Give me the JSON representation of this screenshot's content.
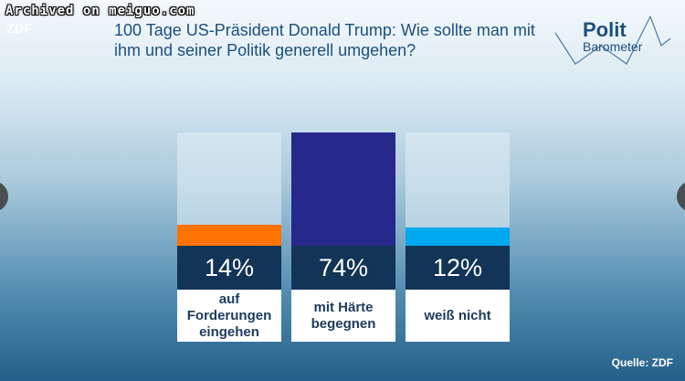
{
  "watermark": "Archived on meiguo.com",
  "broadcaster": "ZDF",
  "logo": {
    "line1": "Polit",
    "line2": "Barometer"
  },
  "chart_data": {
    "type": "bar",
    "title": "100 Tage US-Präsident Donald Trump: Wie sollte man mit ihm und seiner Politik generell umgehen?",
    "categories": [
      "auf Forderungen eingehen",
      "mit Härte begegnen",
      "weiß nicht"
    ],
    "category_labels": [
      "auf\nForderungen\neingehen",
      "mit Härte\nbegegnen",
      "weiß nicht"
    ],
    "values": [
      14,
      74,
      12
    ],
    "value_labels": [
      "14%",
      "74%",
      "12%"
    ],
    "colors": [
      "#ff7300",
      "#26288b",
      "#00a8ef"
    ],
    "unit": "%",
    "ylim": [
      0,
      74
    ],
    "source": "Quelle: ZDF"
  }
}
